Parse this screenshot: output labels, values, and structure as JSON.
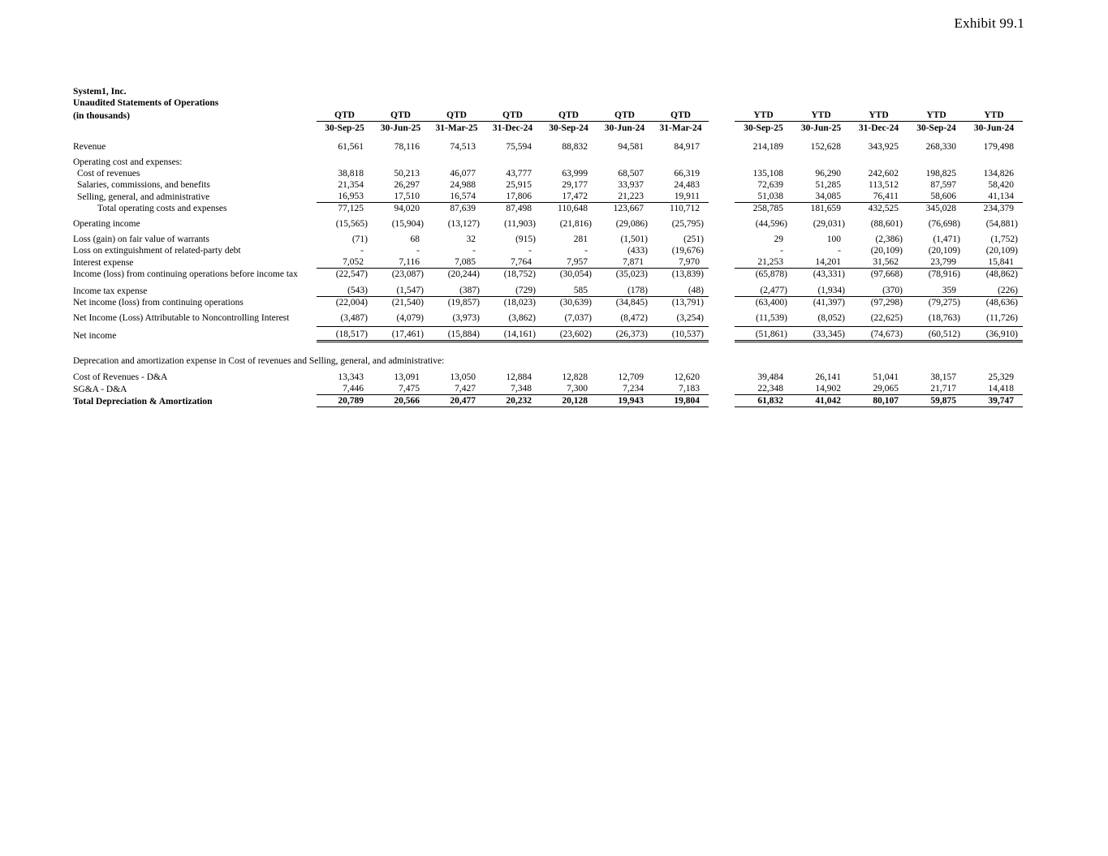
{
  "exhibit": {
    "label": "Exhibit 99.1"
  },
  "title": {
    "company": "System1, Inc.",
    "statement": "Unaudited Statements of Operations",
    "units": "(in thousands)"
  },
  "columns": {
    "qtd_label": "QTD",
    "ytd_label": "YTD",
    "qtd_dates": [
      "30-Sep-25",
      "30-Jun-25",
      "31-Mar-25",
      "31-Dec-24",
      "30-Sep-24",
      "30-Jun-24",
      "31-Mar-24"
    ],
    "ytd_dates": [
      "30-Sep-25",
      "30-Jun-25",
      "31-Dec-24",
      "30-Sep-24",
      "30-Jun-24"
    ]
  },
  "rows": [
    {
      "type": "spacer",
      "h": 9
    },
    {
      "type": "data",
      "label": "Revenue",
      "indent": 0,
      "qtd": [
        "61,561",
        "78,116",
        "74,513",
        "75,594",
        "88,832",
        "94,581",
        "84,917"
      ],
      "ytd": [
        "214,189",
        "152,628",
        "343,925",
        "268,330",
        "179,498"
      ]
    },
    {
      "type": "spacer",
      "h": 5
    },
    {
      "type": "label",
      "label": "Operating cost and expenses:"
    },
    {
      "type": "data",
      "label": "Cost of revenues",
      "indent": 1,
      "qtd": [
        "38,818",
        "50,213",
        "46,077",
        "43,777",
        "63,999",
        "68,507",
        "66,319"
      ],
      "ytd": [
        "135,108",
        "96,290",
        "242,602",
        "198,825",
        "134,826"
      ]
    },
    {
      "type": "data",
      "label": "Salaries, commissions, and benefits",
      "indent": 1,
      "qtd": [
        "21,354",
        "26,297",
        "24,988",
        "25,915",
        "29,177",
        "33,937",
        "24,483"
      ],
      "ytd": [
        "72,639",
        "51,285",
        "113,512",
        "87,597",
        "58,420"
      ]
    },
    {
      "type": "data",
      "label": "Selling, general, and administrative",
      "indent": 1,
      "underline": true,
      "qtd": [
        "16,953",
        "17,510",
        "16,574",
        "17,806",
        "17,472",
        "21,223",
        "19,911"
      ],
      "ytd": [
        "51,038",
        "34,085",
        "76,411",
        "58,606",
        "41,134"
      ]
    },
    {
      "type": "data",
      "label": "Total operating costs and expenses",
      "indent": 2,
      "qtd": [
        "77,125",
        "94,020",
        "87,639",
        "87,498",
        "110,648",
        "123,667",
        "110,712"
      ],
      "ytd": [
        "258,785",
        "181,659",
        "432,525",
        "345,028",
        "234,379"
      ]
    },
    {
      "type": "spacer",
      "h": 5
    },
    {
      "type": "data",
      "label": "Operating income",
      "indent": 0,
      "qtd": [
        "(15,565)",
        "(15,904)",
        "(13,127)",
        "(11,903)",
        "(21,816)",
        "(29,086)",
        "(25,795)"
      ],
      "ytd": [
        "(44,596)",
        "(29,031)",
        "(88,601)",
        "(76,698)",
        "(54,881)"
      ]
    },
    {
      "type": "spacer",
      "h": 5
    },
    {
      "type": "data",
      "label": "Loss (gain) on fair value of warrants",
      "indent": 0,
      "qtd": [
        "(71)",
        "68",
        "32",
        "(915)",
        "281",
        "(1,501)",
        "(251)"
      ],
      "ytd": [
        "29",
        "100",
        "(2,386)",
        "(1,471)",
        "(1,752)"
      ]
    },
    {
      "type": "data",
      "label": "Loss on extinguishment of related-party debt",
      "indent": 0,
      "qtd": [
        "-",
        "-",
        "-",
        "-",
        "-",
        "(433)",
        "(19,676)"
      ],
      "ytd": [
        "-",
        "-",
        "(20,109)",
        "(20,109)",
        "(20,109)"
      ]
    },
    {
      "type": "data",
      "label": "Interest expense",
      "indent": 0,
      "underline": true,
      "qtd": [
        "7,052",
        "7,116",
        "7,085",
        "7,764",
        "7,957",
        "7,871",
        "7,970"
      ],
      "ytd": [
        "21,253",
        "14,201",
        "31,562",
        "23,799",
        "15,841"
      ]
    },
    {
      "type": "data",
      "label": "Income (loss) from continuing operations before income tax",
      "indent": 0,
      "qtd": [
        "(22,547)",
        "(23,087)",
        "(20,244)",
        "(18,752)",
        "(30,054)",
        "(35,023)",
        "(13,839)"
      ],
      "ytd": [
        "(65,878)",
        "(43,331)",
        "(97,668)",
        "(78,916)",
        "(48,862)"
      ]
    },
    {
      "type": "spacer",
      "h": 6
    },
    {
      "type": "data",
      "label": "Income tax expense",
      "indent": 0,
      "underline": true,
      "qtd": [
        "(543)",
        "(1,547)",
        "(387)",
        "(729)",
        "585",
        "(178)",
        "(48)"
      ],
      "ytd": [
        "(2,477)",
        "(1,934)",
        "(370)",
        "359",
        "(226)"
      ]
    },
    {
      "type": "data",
      "label": "Net income (loss) from continuing operations",
      "indent": 0,
      "qtd": [
        "(22,004)",
        "(21,540)",
        "(19,857)",
        "(18,023)",
        "(30,639)",
        "(34,845)",
        "(13,791)"
      ],
      "ytd": [
        "(63,400)",
        "(41,397)",
        "(97,298)",
        "(79,275)",
        "(48,636)"
      ]
    },
    {
      "type": "spacer",
      "h": 5
    },
    {
      "type": "data",
      "label": "Net Income (Loss) Attributable to Noncontrolling Interest",
      "indent": 0,
      "qtd": [
        "(3,487)",
        "(4,079)",
        "(3,973)",
        "(3,862)",
        "(7,037)",
        "(8,472)",
        "(3,254)"
      ],
      "ytd": [
        "(11,539)",
        "(8,052)",
        "(22,625)",
        "(18,763)",
        "(11,726)"
      ]
    },
    {
      "type": "spacer",
      "h": 3
    },
    {
      "type": "data",
      "label": "Net income",
      "indent": 0,
      "net": true,
      "qtd": [
        "(18,517)",
        "(17,461)",
        "(15,884)",
        "(14,161)",
        "(23,602)",
        "(26,373)",
        "(10,537)"
      ],
      "ytd": [
        "(51,861)",
        "(33,345)",
        "(74,673)",
        "(60,512)",
        "(36,910)"
      ]
    },
    {
      "type": "spacer",
      "h": 16
    },
    {
      "type": "label",
      "label": "Deprecation and amortization expense in Cost of revenues and Selling, general, and administrative:"
    },
    {
      "type": "spacer",
      "h": 6
    },
    {
      "type": "data",
      "label": "Cost of Revenues - D&A",
      "indent": 0,
      "qtd": [
        "13,343",
        "13,091",
        "13,050",
        "12,884",
        "12,828",
        "12,709",
        "12,620"
      ],
      "ytd": [
        "39,484",
        "26,141",
        "51,041",
        "38,157",
        "25,329"
      ]
    },
    {
      "type": "data",
      "label": "SG&A - D&A",
      "indent": 0,
      "underline": true,
      "qtd": [
        "7,446",
        "7,475",
        "7,427",
        "7,348",
        "7,300",
        "7,234",
        "7,183"
      ],
      "ytd": [
        "22,348",
        "14,902",
        "29,065",
        "21,717",
        "14,418"
      ]
    },
    {
      "type": "data",
      "label": "Total Depreciation & Amortization",
      "indent": 0,
      "bold": true,
      "underline": true,
      "qtd": [
        "20,789",
        "20,566",
        "20,477",
        "20,232",
        "20,128",
        "19,943",
        "19,804"
      ],
      "ytd": [
        "61,832",
        "41,042",
        "80,107",
        "59,875",
        "39,747"
      ]
    }
  ]
}
